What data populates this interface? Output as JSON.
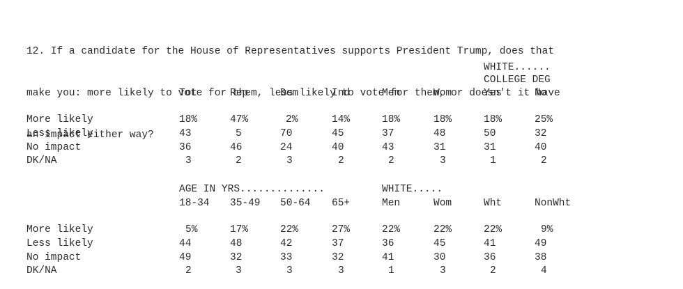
{
  "question": {
    "line1": "12. If a candidate for the House of Representatives supports President Trump, does that",
    "line2": "make you: more likely to vote for them, less likely to vote for them, or doesn't it have",
    "line3": "an impact either way?"
  },
  "table1": {
    "group_line1": "WHITE......",
    "group_line2": "COLLEGE DEG",
    "headers": [
      "Tot",
      "Rep",
      "Dem",
      "Ind",
      "Men",
      "Wom",
      "Yes",
      "No"
    ],
    "rows": [
      {
        "label": "More likely",
        "values": [
          "18%",
          "47%",
          "2%",
          "14%",
          "18%",
          "18%",
          "18%",
          "25%"
        ]
      },
      {
        "label": "Less likely",
        "values": [
          "43",
          "5",
          "70",
          "45",
          "37",
          "48",
          "50",
          "32"
        ]
      },
      {
        "label": "No impact",
        "values": [
          "36",
          "46",
          "24",
          "40",
          "43",
          "31",
          "31",
          "40"
        ]
      },
      {
        "label": "DK/NA",
        "values": [
          "3",
          "2",
          "3",
          "2",
          "2",
          "3",
          "1",
          "2"
        ]
      }
    ]
  },
  "table2": {
    "group_age": "AGE IN YRS..............",
    "group_white": "WHITE.....",
    "headers": [
      "18-34",
      "35-49",
      "50-64",
      "65+",
      "Men",
      "Wom",
      "Wht",
      "NonWht"
    ],
    "rows": [
      {
        "label": "More likely",
        "values": [
          "5%",
          "17%",
          "22%",
          "27%",
          "22%",
          "22%",
          "22%",
          "9%"
        ]
      },
      {
        "label": "Less likely",
        "values": [
          "44",
          "48",
          "42",
          "37",
          "36",
          "45",
          "41",
          "49"
        ]
      },
      {
        "label": "No impact",
        "values": [
          "49",
          "32",
          "33",
          "32",
          "41",
          "30",
          "36",
          "38"
        ]
      },
      {
        "label": "DK/NA",
        "values": [
          "2",
          "3",
          "3",
          "3",
          "1",
          "3",
          "2",
          "4"
        ]
      }
    ]
  }
}
